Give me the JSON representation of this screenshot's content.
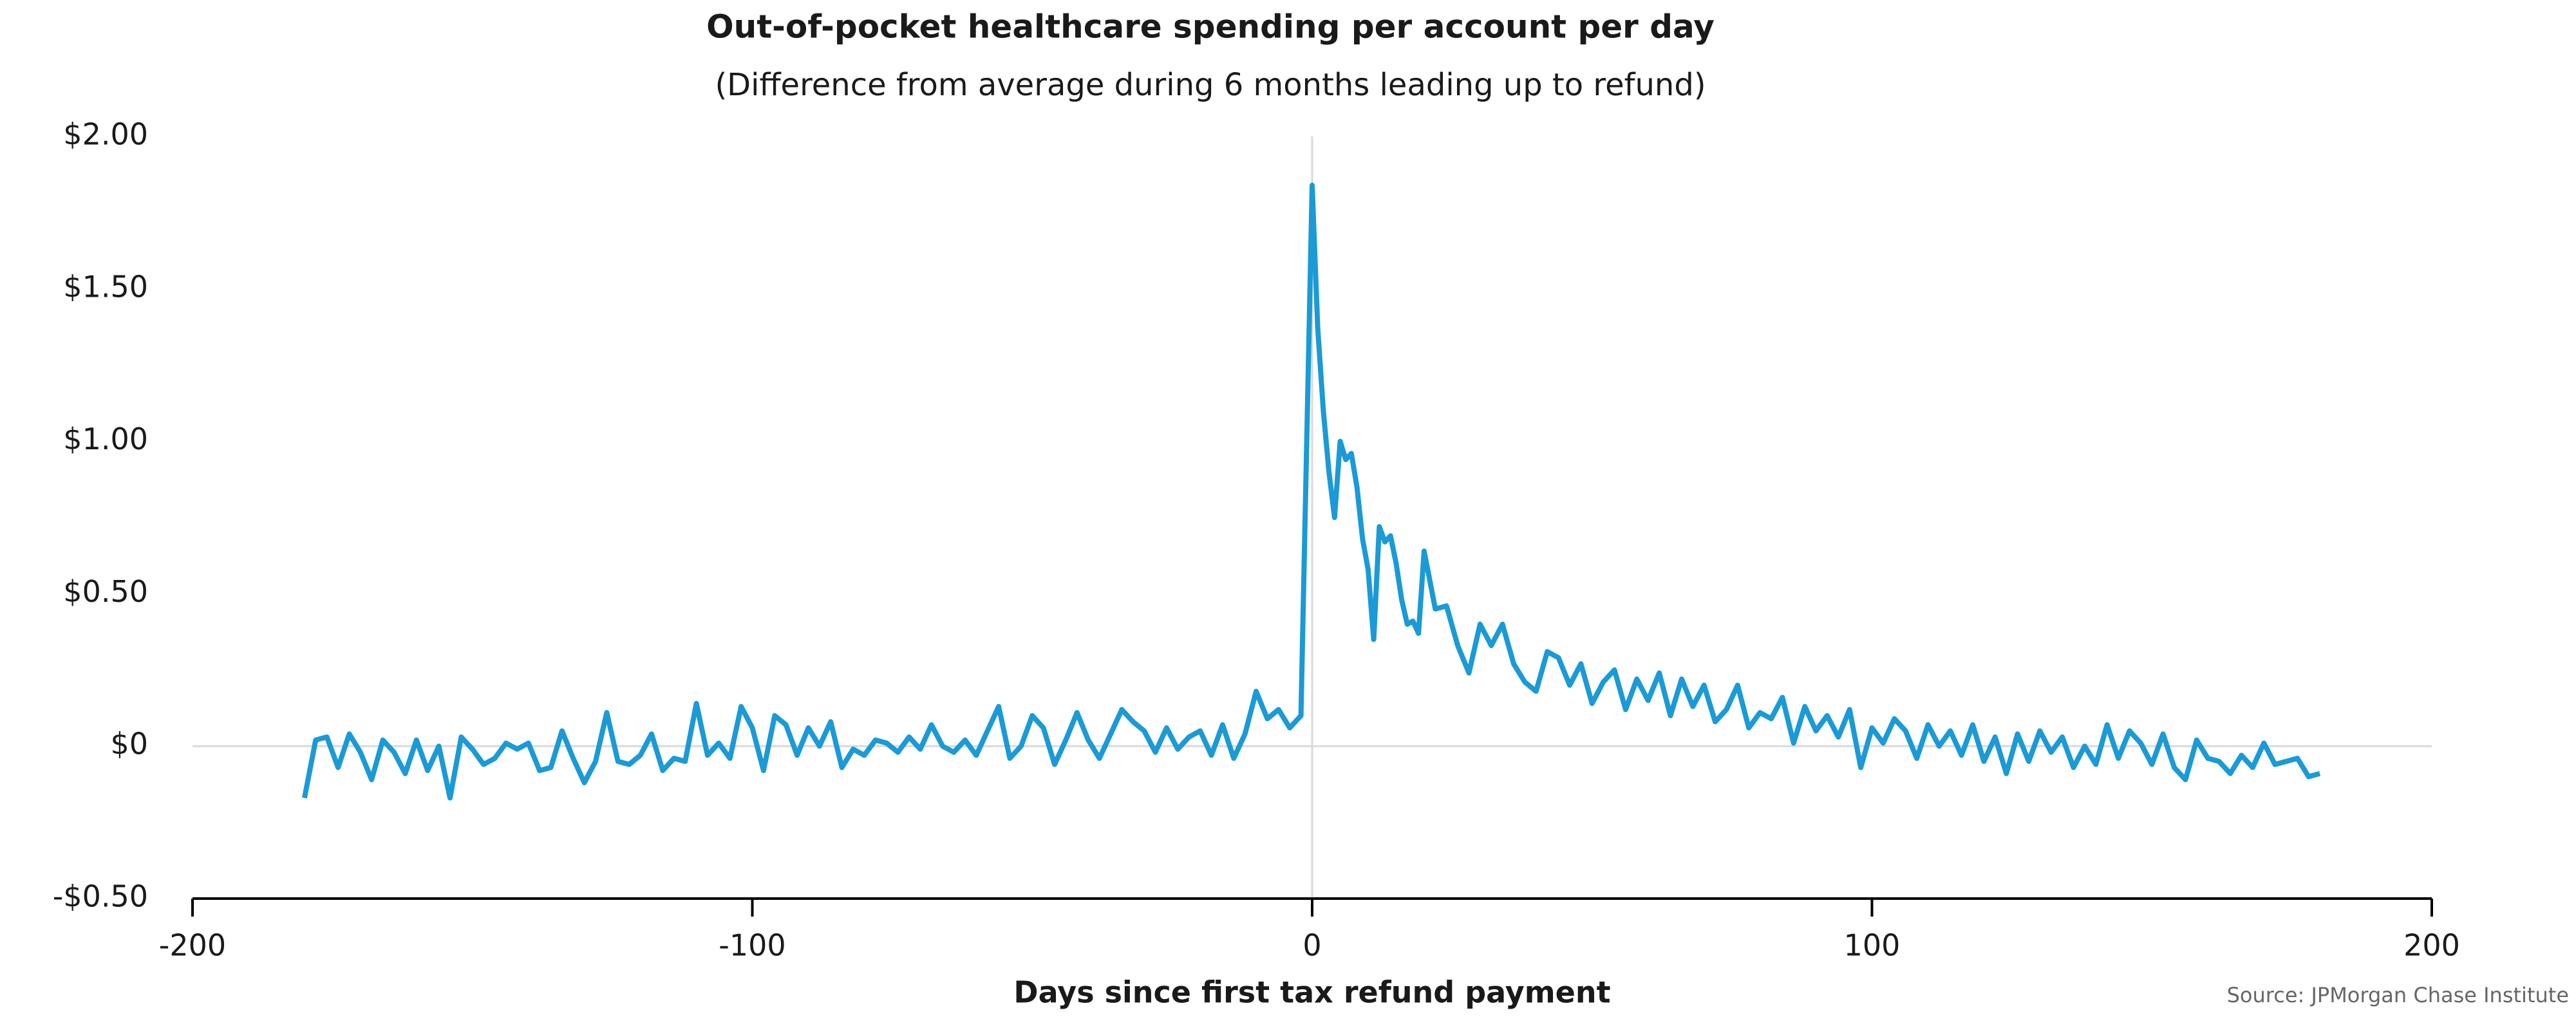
{
  "chart_data": {
    "type": "line",
    "title": "Out-of-pocket healthcare spending per account per day",
    "subtitle": "(Difference from average during 6 months leading up to refund)",
    "x_label": "Days since first tax refund payment",
    "source": "Source: JPMorgan Chase Institute",
    "color": "#1a9ad6",
    "zero_lines": true,
    "xlim": [
      -200,
      200
    ],
    "xticks": [
      -200,
      -100,
      0,
      100,
      200
    ],
    "ylim": [
      -0.5,
      2.0
    ],
    "yticks": [
      {
        "value": -0.5,
        "label": "-$0.50"
      },
      {
        "value": 0,
        "label": "$0"
      },
      {
        "value": 0.5,
        "label": "$0.50"
      },
      {
        "value": 1,
        "label": "$1.00"
      },
      {
        "value": 1.5,
        "label": "$1.50"
      },
      {
        "value": 2,
        "label": "$2.00"
      }
    ],
    "x": [
      -180,
      -178,
      -176,
      -174,
      -172,
      -170,
      -168,
      -166,
      -164,
      -162,
      -160,
      -158,
      -156,
      -154,
      -152,
      -150,
      -148,
      -146,
      -144,
      -142,
      -140,
      -138,
      -136,
      -134,
      -132,
      -130,
      -128,
      -126,
      -124,
      -122,
      -120,
      -118,
      -116,
      -114,
      -112,
      -110,
      -108,
      -106,
      -104,
      -102,
      -100,
      -98,
      -96,
      -94,
      -92,
      -90,
      -88,
      -86,
      -84,
      -82,
      -80,
      -78,
      -76,
      -74,
      -72,
      -70,
      -68,
      -66,
      -64,
      -62,
      -60,
      -58,
      -56,
      -54,
      -52,
      -50,
      -48,
      -46,
      -44,
      -42,
      -40,
      -38,
      -36,
      -34,
      -32,
      -30,
      -28,
      -26,
      -24,
      -22,
      -20,
      -18,
      -16,
      -14,
      -12,
      -10,
      -8,
      -6,
      -4,
      -2,
      0,
      1,
      2,
      3,
      4,
      5,
      6,
      7,
      8,
      9,
      10,
      11,
      12,
      13,
      14,
      15,
      16,
      17,
      18,
      19,
      20,
      22,
      24,
      26,
      28,
      30,
      32,
      34,
      36,
      38,
      40,
      42,
      44,
      46,
      48,
      50,
      52,
      54,
      56,
      58,
      60,
      62,
      64,
      66,
      68,
      70,
      72,
      74,
      76,
      78,
      80,
      82,
      84,
      86,
      88,
      90,
      92,
      94,
      96,
      98,
      100,
      102,
      104,
      106,
      108,
      110,
      112,
      114,
      116,
      118,
      120,
      122,
      124,
      126,
      128,
      130,
      132,
      134,
      136,
      138,
      140,
      142,
      144,
      146,
      148,
      150,
      152,
      154,
      156,
      158,
      160,
      162,
      164,
      166,
      168,
      170,
      172,
      174,
      176,
      178,
      180
    ],
    "values": [
      -0.17,
      0.02,
      0.03,
      -0.07,
      0.04,
      -0.02,
      -0.11,
      0.02,
      -0.02,
      -0.09,
      0.02,
      -0.08,
      0.0,
      -0.17,
      0.03,
      -0.01,
      -0.06,
      -0.04,
      0.01,
      -0.01,
      0.01,
      -0.08,
      -0.07,
      0.05,
      -0.04,
      -0.12,
      -0.05,
      0.11,
      -0.05,
      -0.06,
      -0.03,
      0.04,
      -0.08,
      -0.04,
      -0.05,
      0.14,
      -0.03,
      0.01,
      -0.04,
      0.13,
      0.06,
      -0.08,
      0.1,
      0.07,
      -0.03,
      0.06,
      0.0,
      0.08,
      -0.07,
      -0.01,
      -0.03,
      0.02,
      0.01,
      -0.02,
      0.03,
      -0.01,
      0.07,
      0.0,
      -0.02,
      0.02,
      -0.03,
      0.05,
      0.13,
      -0.04,
      0.0,
      0.1,
      0.06,
      -0.06,
      0.02,
      0.11,
      0.02,
      -0.04,
      0.04,
      0.12,
      0.08,
      0.05,
      -0.02,
      0.06,
      -0.01,
      0.03,
      0.05,
      -0.03,
      0.07,
      -0.04,
      0.04,
      0.18,
      0.09,
      0.12,
      0.06,
      0.1,
      1.84,
      1.37,
      1.1,
      0.9,
      0.75,
      1.0,
      0.94,
      0.96,
      0.85,
      0.68,
      0.58,
      0.35,
      0.72,
      0.67,
      0.69,
      0.6,
      0.48,
      0.4,
      0.41,
      0.37,
      0.64,
      0.45,
      0.46,
      0.33,
      0.24,
      0.4,
      0.33,
      0.4,
      0.27,
      0.21,
      0.18,
      0.31,
      0.29,
      0.2,
      0.27,
      0.14,
      0.21,
      0.25,
      0.12,
      0.22,
      0.15,
      0.24,
      0.1,
      0.22,
      0.13,
      0.2,
      0.08,
      0.12,
      0.2,
      0.06,
      0.11,
      0.09,
      0.16,
      0.01,
      0.13,
      0.05,
      0.1,
      0.03,
      0.12,
      -0.07,
      0.06,
      0.01,
      0.09,
      0.05,
      -0.04,
      0.07,
      0.0,
      0.05,
      -0.03,
      0.07,
      -0.05,
      0.03,
      -0.09,
      0.04,
      -0.05,
      0.05,
      -0.02,
      0.03,
      -0.07,
      0.0,
      -0.06,
      0.07,
      -0.04,
      0.05,
      0.01,
      -0.06,
      0.04,
      -0.07,
      -0.11,
      0.02,
      -0.04,
      -0.05,
      -0.09,
      -0.03,
      -0.07,
      0.01,
      -0.06,
      -0.05,
      -0.04,
      -0.1,
      -0.09
    ]
  }
}
